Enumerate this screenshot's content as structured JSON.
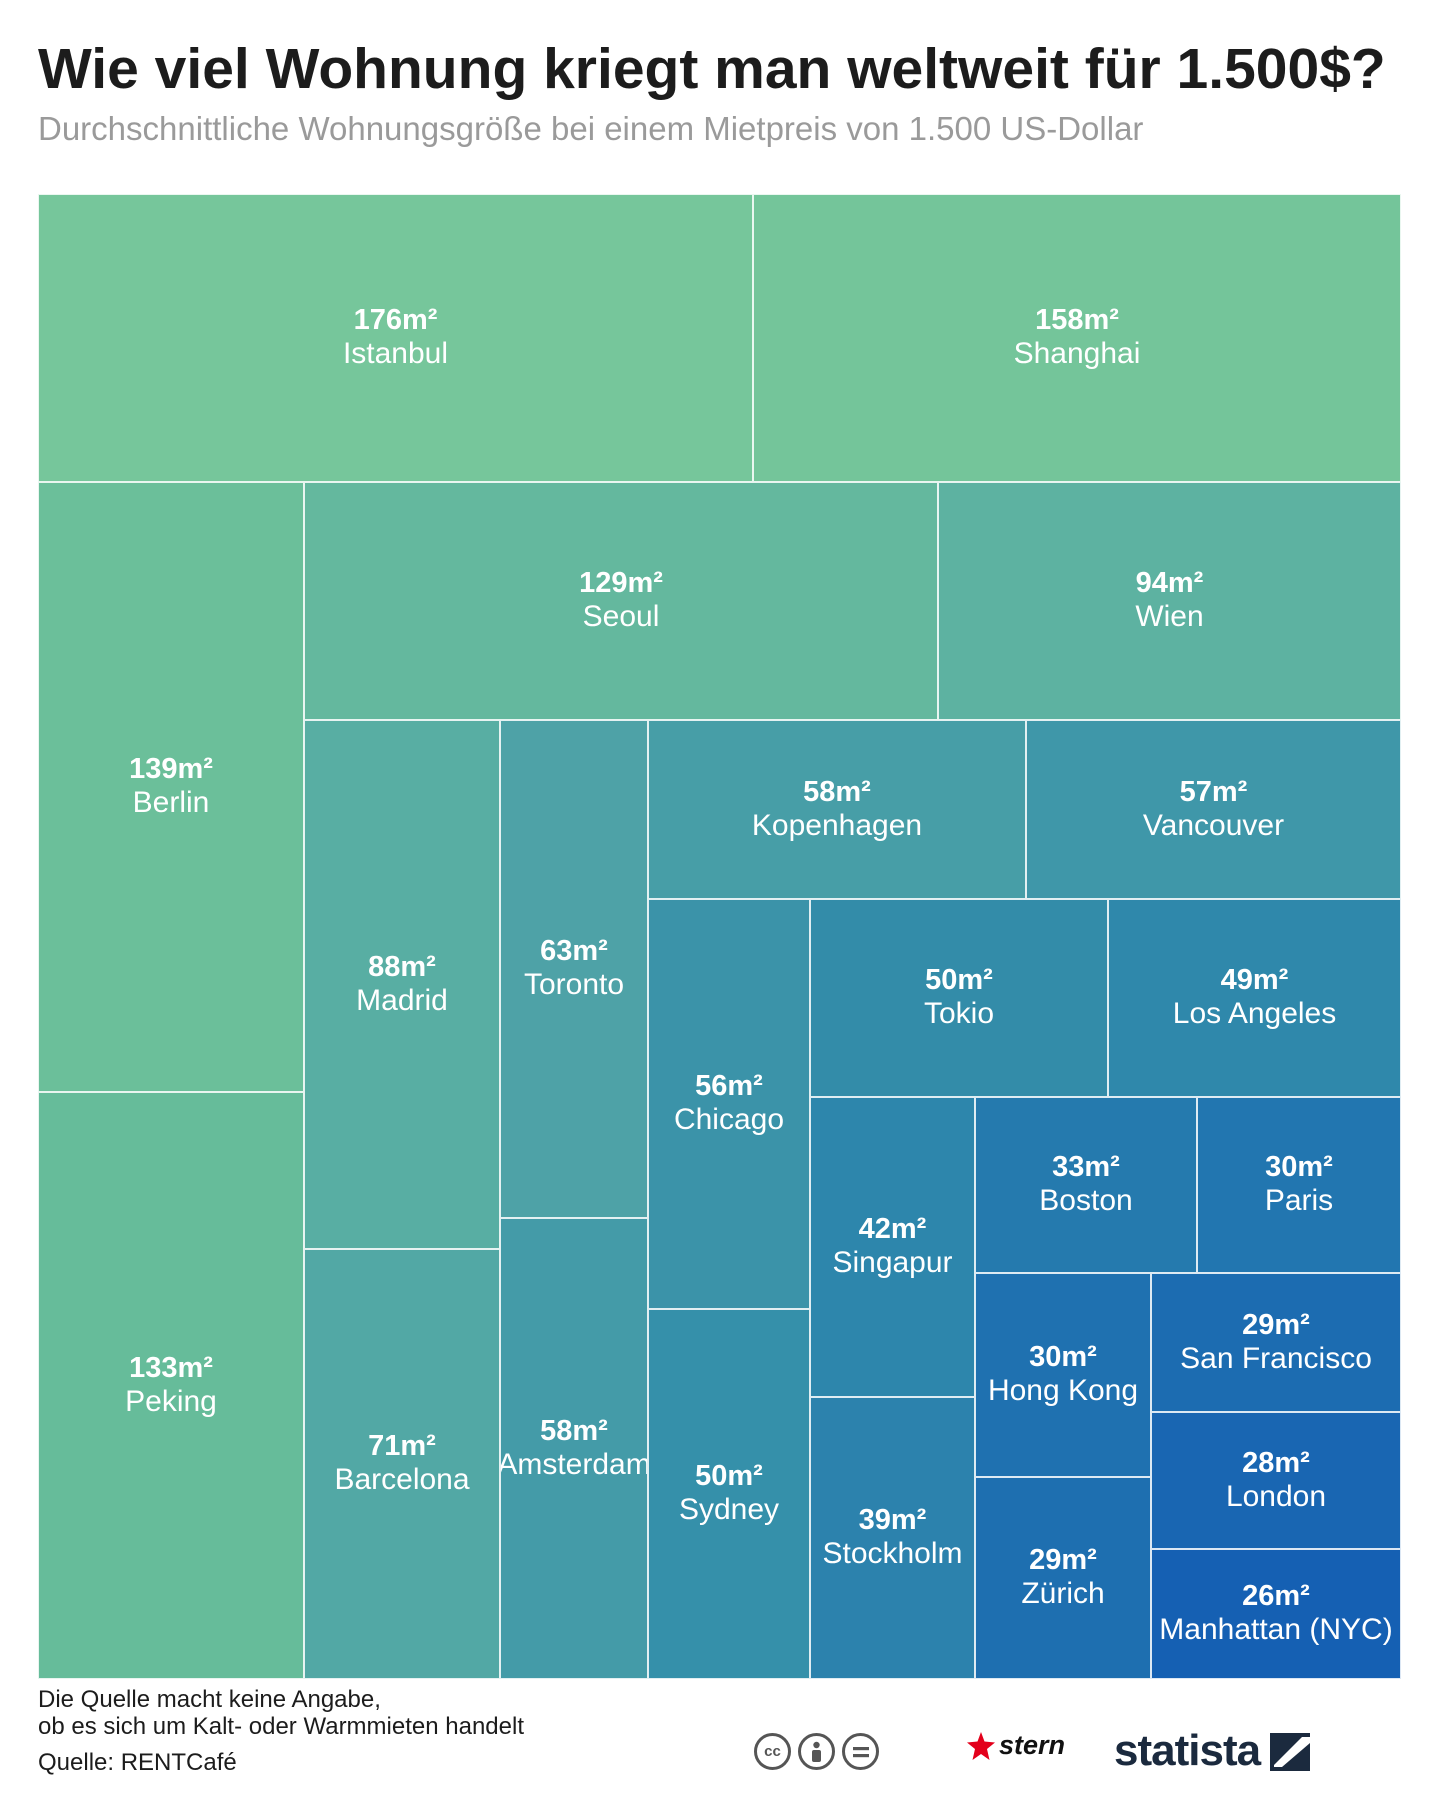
{
  "chart_data": {
    "type": "treemap",
    "title": "Wie viel Wohnung kriegt man weltweit für 1.500$?",
    "subtitle": "Durchschnittliche Wohnungsgröße bei einem Mietpreis von 1.500 US-Dollar",
    "unit": "m²",
    "items": [
      {
        "label": "Istanbul",
        "value": 176,
        "value_text": "176m²",
        "color": "#76c69b"
      },
      {
        "label": "Shanghai",
        "value": 158,
        "value_text": "158m²",
        "color": "#74c59a"
      },
      {
        "label": "Berlin",
        "value": 139,
        "value_text": "139m²",
        "color": "#6bbf9a"
      },
      {
        "label": "Peking",
        "value": 133,
        "value_text": "133m²",
        "color": "#66bc9a"
      },
      {
        "label": "Seoul",
        "value": 129,
        "value_text": "129m²",
        "color": "#64b89e"
      },
      {
        "label": "Wien",
        "value": 94,
        "value_text": "94m²",
        "color": "#5db2a1"
      },
      {
        "label": "Madrid",
        "value": 88,
        "value_text": "88m²",
        "color": "#58aea3"
      },
      {
        "label": "Barcelona",
        "value": 71,
        "value_text": "71m²",
        "color": "#52a8a5"
      },
      {
        "label": "Toronto",
        "value": 63,
        "value_text": "63m²",
        "color": "#4ea2a7"
      },
      {
        "label": "Kopenhagen",
        "value": 58,
        "value_text": "58m²",
        "color": "#479ea7"
      },
      {
        "label": "Amsterdam",
        "value": 58,
        "value_text": "58m²",
        "color": "#449ba8"
      },
      {
        "label": "Vancouver",
        "value": 57,
        "value_text": "57m²",
        "color": "#3f97a9"
      },
      {
        "label": "Chicago",
        "value": 56,
        "value_text": "56m²",
        "color": "#3b93a9"
      },
      {
        "label": "Tokio",
        "value": 50,
        "value_text": "50m²",
        "color": "#338ca9"
      },
      {
        "label": "Sydney",
        "value": 50,
        "value_text": "50m²",
        "color": "#3590aa"
      },
      {
        "label": "Los Angeles",
        "value": 49,
        "value_text": "49m²",
        "color": "#2f88ab"
      },
      {
        "label": "Singapur",
        "value": 42,
        "value_text": "42m²",
        "color": "#2d86ac"
      },
      {
        "label": "Stockholm",
        "value": 39,
        "value_text": "39m²",
        "color": "#2c82ad"
      },
      {
        "label": "Boston",
        "value": 33,
        "value_text": "33m²",
        "color": "#257aae"
      },
      {
        "label": "Paris",
        "value": 30,
        "value_text": "30m²",
        "color": "#2276b0"
      },
      {
        "label": "Hong Kong",
        "value": 30,
        "value_text": "30m²",
        "color": "#1f71b0"
      },
      {
        "label": "San Francisco",
        "value": 29,
        "value_text": "29m²",
        "color": "#1c6cb1"
      },
      {
        "label": "Zürich",
        "value": 29,
        "value_text": "29m²",
        "color": "#1e6fb0"
      },
      {
        "label": "London",
        "value": 28,
        "value_text": "28m²",
        "color": "#1966b2"
      },
      {
        "label": "Manhattan (NYC)",
        "value": 26,
        "value_text": "26m²",
        "color": "#1560b3"
      }
    ]
  },
  "footer": {
    "note_line1": "Die Quelle macht keine Angabe,",
    "note_line2": "ob es sich um Kalt- oder Warmmieten handelt",
    "source": "Quelle: RENTCafé"
  },
  "branding": {
    "stern_word": "stern",
    "statista_word": "statista",
    "license_badges": [
      "cc",
      "by",
      "nd"
    ],
    "brand_red": "#e3001b",
    "statista_navy": "#1b2a3e"
  }
}
